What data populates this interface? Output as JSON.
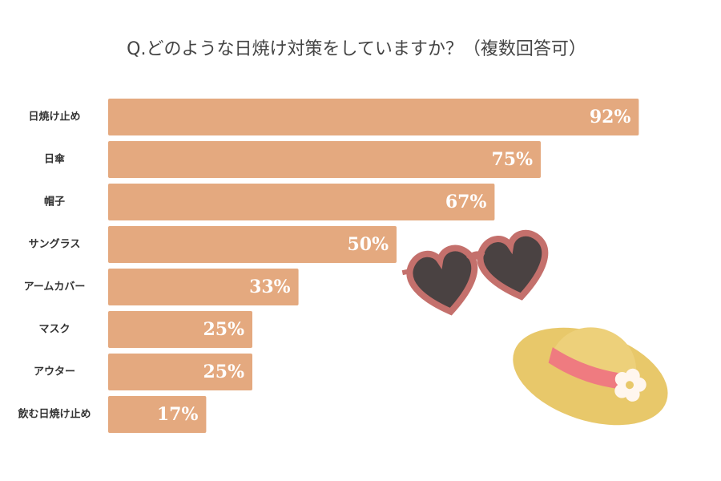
{
  "chart_data": {
    "type": "bar",
    "orientation": "horizontal",
    "title": "Q.どのような日焼け対策をしていますか？（複数回答可）",
    "categories": [
      "日焼け止め",
      "日傘",
      "帽子",
      "サングラス",
      "アームカバー",
      "マスク",
      "アウター",
      "飲む日焼け止め"
    ],
    "values": [
      92,
      75,
      67,
      50,
      33,
      25,
      25,
      17
    ],
    "value_labels": [
      "92%",
      "75%",
      "67%",
      "50%",
      "33%",
      "25%",
      "25%",
      "17%"
    ],
    "color": "#e4a97f",
    "xlim": [
      0,
      100
    ]
  }
}
